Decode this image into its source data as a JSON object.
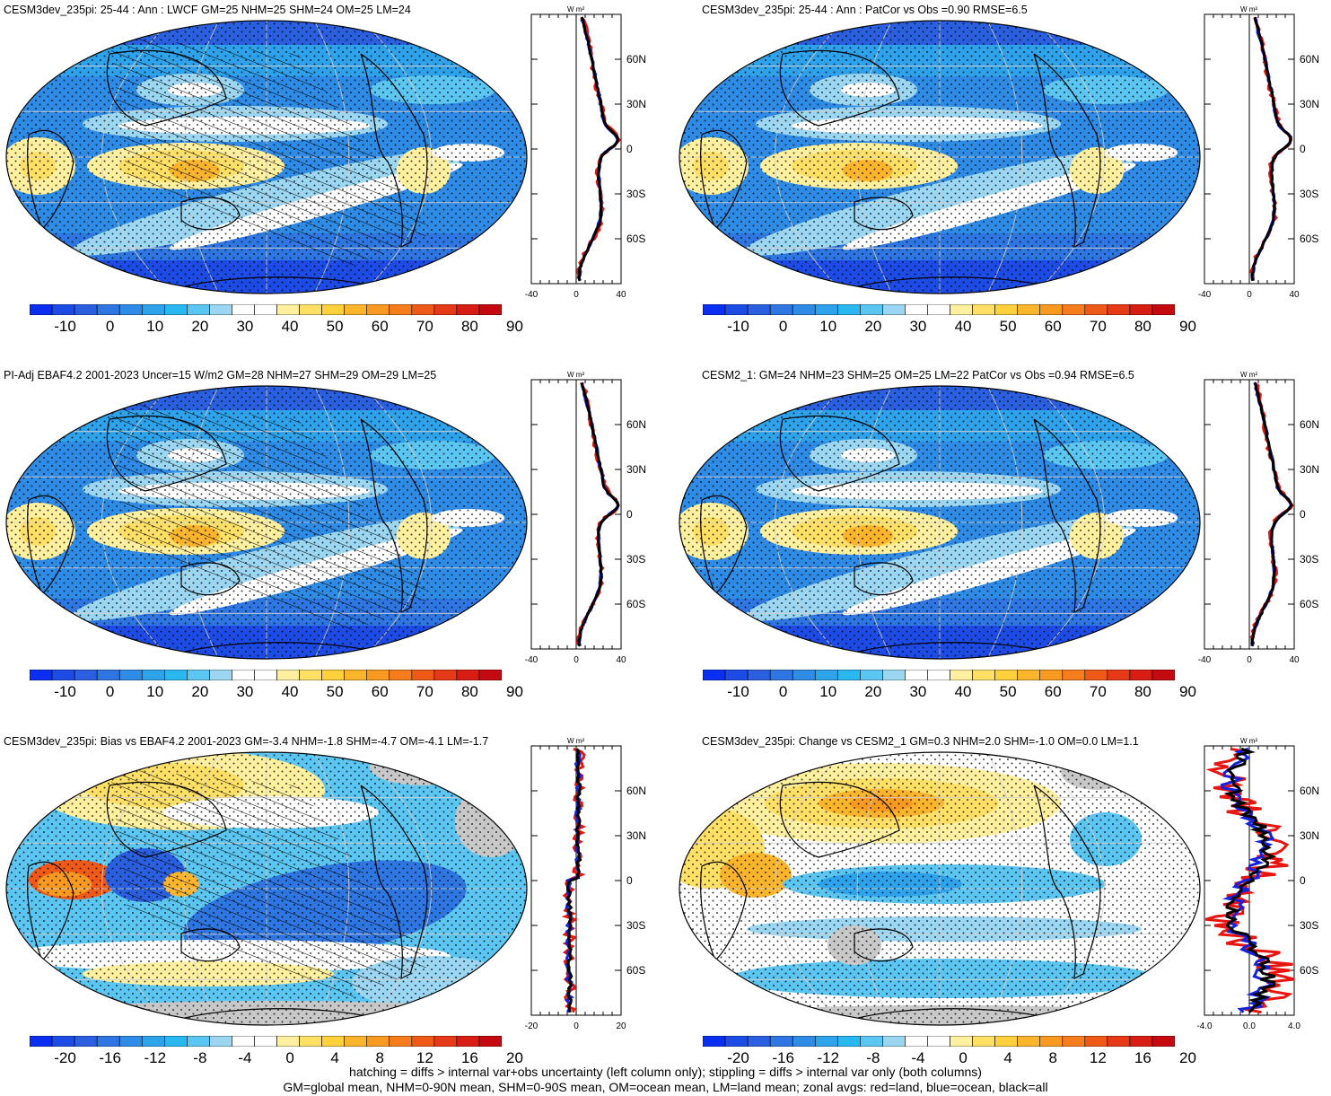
{
  "panels": [
    {
      "title": "CESM3dev_235pi: 25-44 : Ann : LWCF GM=25 NHM=25 SHM=24 OM=25 LM=24",
      "kind": "clim",
      "hatch": true,
      "zlim": [
        -40,
        40
      ],
      "zticks": [
        "-40",
        "0",
        "40"
      ]
    },
    {
      "title": "CESM3dev_235pi: 25-44 : Ann : PatCor vs Obs =0.90 RMSE=6.5",
      "kind": "clim",
      "hatch": false,
      "zlim": [
        -40,
        40
      ],
      "zticks": [
        "-40",
        "0",
        "40"
      ]
    },
    {
      "title": "PI-Adj EBAF4.2 2001-2023 Uncer=15 W/m2 GM=28 NHM=27 SHM=29 OM=29 LM=25",
      "kind": "clim",
      "hatch": true,
      "zlim": [
        -40,
        40
      ],
      "zticks": [
        "-40",
        "0",
        "40"
      ]
    },
    {
      "title": "CESM2_1: GM=24 NHM=23 SHM=25 OM=25 LM=22 PatCor vs Obs =0.94 RMSE=6.5",
      "kind": "clim",
      "hatch": false,
      "zlim": [
        -40,
        40
      ],
      "zticks": [
        "-40",
        "0",
        "40"
      ]
    },
    {
      "title": "CESM3dev_235pi: Bias vs EBAF4.2 2001-2023 GM=-3.4 NHM=-1.8 SHM=-4.7 OM=-4.1 LM=-1.7",
      "kind": "diff",
      "hatch": true,
      "zlim": [
        -20,
        20
      ],
      "zticks": [
        "-20",
        "0",
        "20"
      ]
    },
    {
      "title": "CESM3dev_235pi: Change vs CESM2_1 GM=0.3 NHM=2.0 SHM=-1.0 OM=0.0 LM=1.1",
      "kind": "change",
      "hatch": false,
      "zlim": [
        -4,
        4
      ],
      "zticks": [
        "-4.0",
        "0.0",
        "4.0"
      ]
    }
  ],
  "zonal_axis": {
    "unit": "W m²",
    "lat_labels": [
      "60N",
      "30N",
      "0",
      "30S",
      "60S"
    ],
    "lat_values": [
      60,
      30,
      0,
      -30,
      -60
    ]
  },
  "colorbars": {
    "clim": {
      "labels": [
        "-10",
        "0",
        "10",
        "20",
        "30",
        "40",
        "50",
        "60",
        "70",
        "80",
        "90"
      ],
      "colors": [
        "#0a2ff0",
        "#1d4be6",
        "#2a5fe0",
        "#2e76e2",
        "#2f8ce6",
        "#2ea3ec",
        "#2ab8f2",
        "#5cc6f2",
        "#9bd7f2",
        "#ffffff",
        "#ffffff",
        "#fff0a0",
        "#ffe066",
        "#fdd03c",
        "#fbb52d",
        "#f89a22",
        "#f57d1c",
        "#ef5a18",
        "#e63a16",
        "#d81e14",
        "#c40a10"
      ]
    },
    "diff": {
      "labels": [
        "-20",
        "-16",
        "-12",
        "-8",
        "-4",
        "0",
        "4",
        "8",
        "12",
        "16",
        "20"
      ],
      "colors": [
        "#0a2ff0",
        "#1d4be6",
        "#2a5fe0",
        "#2e76e2",
        "#2f8ce6",
        "#2ea3ec",
        "#2ab8f2",
        "#5cc6f2",
        "#9bd7f2",
        "#ffffff",
        "#ffffff",
        "#fff0a0",
        "#ffe066",
        "#fdd03c",
        "#fbb52d",
        "#f89a22",
        "#f57d1c",
        "#ef5a18",
        "#e63a16",
        "#d81e14",
        "#c40a10"
      ]
    }
  },
  "footer": {
    "line1": "hatching = diffs > internal var+obs uncertainty (left column only); stippling = diffs > internal var only (both columns)",
    "line2": "GM=global mean, NHM=0-90N mean, SHM=0-90S mean, OM=ocean mean, LM=land mean; zonal avgs: red=land, blue=ocean, black=all"
  }
}
